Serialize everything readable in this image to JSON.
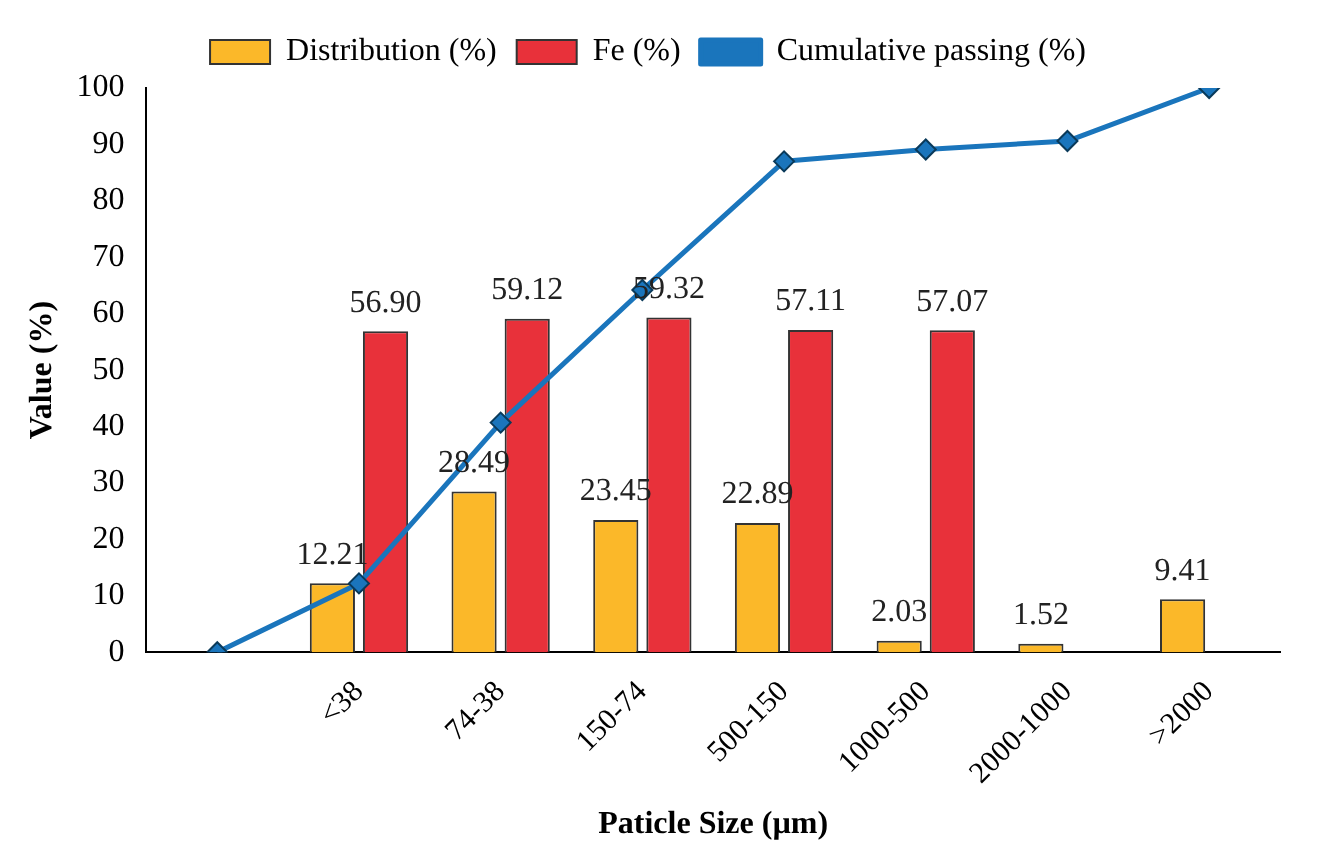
{
  "chart_data": {
    "type": "bar",
    "xlabel": "Paticle Size (µm)",
    "ylabel": "Value (%)",
    "categories": [
      null,
      "<38",
      "74-38",
      "150-74",
      "500-150",
      "1000-500",
      "2000-1000",
      ">2000"
    ],
    "series": [
      {
        "name": "Distribution (%)",
        "color": "#fbb829",
        "values": [
          null,
          12.21,
          28.49,
          23.45,
          22.89,
          2.03,
          1.52,
          9.41
        ],
        "value_labels": [
          null,
          "12.21",
          "28.49",
          "23.45",
          "22.89",
          "2.03",
          "1.52",
          "9.41"
        ]
      },
      {
        "name": "Fe (%)",
        "color": "#e8313a",
        "values": [
          null,
          56.9,
          59.12,
          59.32,
          57.11,
          57.07,
          null,
          null
        ],
        "value_labels": [
          null,
          "56.90",
          "59.12",
          "59.32",
          "57.11",
          "57.07",
          null,
          null
        ]
      },
      {
        "name": "Cumulative passing (%)",
        "type": "line",
        "color": "#1a75bc",
        "values": [
          0,
          12.2,
          40.7,
          64.2,
          87.0,
          89.1,
          90.6,
          100
        ]
      }
    ],
    "ylim": [
      0,
      100
    ],
    "yticks": [
      0,
      10,
      20,
      30,
      40,
      50,
      60,
      70,
      80,
      90,
      100
    ],
    "grid": false,
    "legend": "top",
    "marker": "diamond",
    "line_style": "solid"
  }
}
